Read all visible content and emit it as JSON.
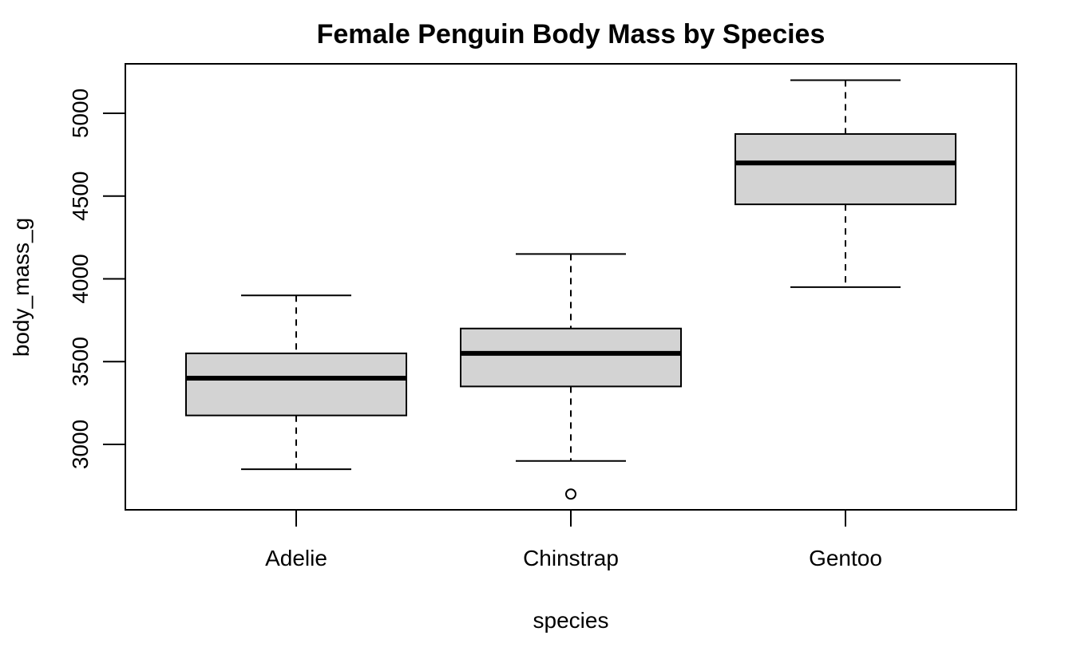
{
  "chart_data": {
    "type": "boxplot",
    "title": "Female Penguin Body Mass by Species",
    "xlabel": "species",
    "ylabel": "body_mass_g",
    "categories": [
      "Adelie",
      "Chinstrap",
      "Gentoo"
    ],
    "yticks": [
      3000,
      3500,
      4000,
      4500,
      5000
    ],
    "ytick_labels": [
      "3000",
      "3500",
      "4000",
      "4500",
      "5000"
    ],
    "ylim": [
      2700,
      5200
    ],
    "box_fill": "#d3d3d3",
    "grid": false,
    "boxes": [
      {
        "category": "Adelie",
        "whisker_low": 2850,
        "q1": 3175,
        "median": 3400,
        "q3": 3550,
        "whisker_high": 3900,
        "outliers": []
      },
      {
        "category": "Chinstrap",
        "whisker_low": 2900,
        "q1": 3350,
        "median": 3550,
        "q3": 3700,
        "whisker_high": 4150,
        "outliers": [
          2700
        ]
      },
      {
        "category": "Gentoo",
        "whisker_low": 3950,
        "q1": 4450,
        "median": 4700,
        "q3": 4875,
        "whisker_high": 5200,
        "outliers": []
      }
    ]
  }
}
